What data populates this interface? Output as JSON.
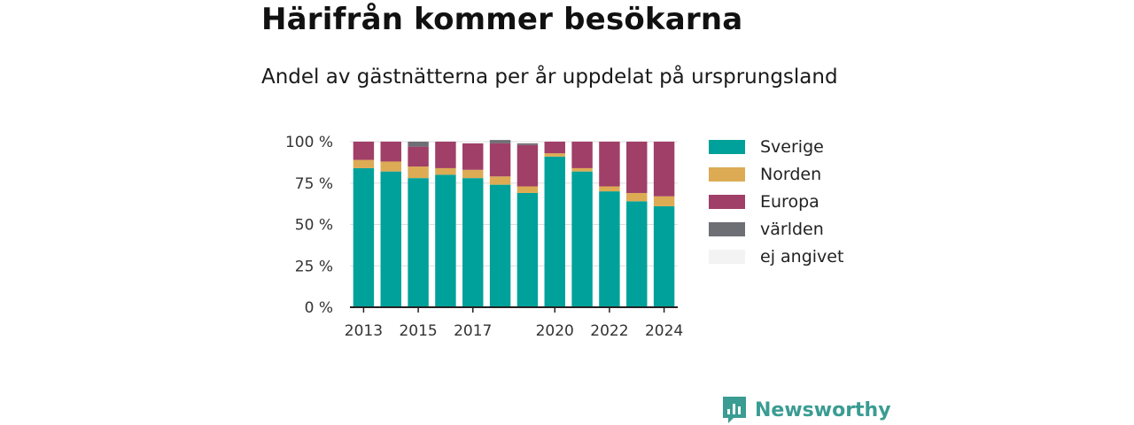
{
  "header": {
    "title": "Härifrån kommer besökarna",
    "subtitle": "Andel av gästnätterna per år uppdelat på ursprungsland"
  },
  "brand": {
    "name": "Newsworthy",
    "icon": "newsworthy-logo-icon",
    "color": "#3a9c92"
  },
  "chart_data": {
    "type": "bar",
    "stacked": true,
    "categories": [
      "2013",
      "2014",
      "2015",
      "2016",
      "2017",
      "2018",
      "2019",
      "2020",
      "2021",
      "2022",
      "2023",
      "2024"
    ],
    "x_tick_labels": [
      "2013",
      "2015",
      "2017",
      "2020",
      "2022",
      "2024"
    ],
    "y_tick_labels": [
      "0 %",
      "25 %",
      "50 %",
      "75 %",
      "100 %"
    ],
    "ylim": [
      0,
      100
    ],
    "yticks": [
      0,
      25,
      50,
      75,
      100
    ],
    "grid": true,
    "legend_position": "right",
    "series": [
      {
        "name": "Sverige",
        "color": "#00a19a",
        "values": [
          84,
          82,
          78,
          80,
          78,
          74,
          69,
          91,
          82,
          70,
          64,
          61
        ]
      },
      {
        "name": "Norden",
        "color": "#dcab54",
        "values": [
          5,
          6,
          7,
          4,
          5,
          5,
          4,
          2,
          2,
          3,
          5,
          6
        ]
      },
      {
        "name": "Europa",
        "color": "#a03f68",
        "values": [
          11,
          12,
          12,
          16,
          16,
          20,
          25,
          7,
          16,
          27,
          31,
          33
        ]
      },
      {
        "name": "världen",
        "color": "#6e6e75",
        "values": [
          0,
          0,
          3,
          0,
          0,
          2,
          1,
          0,
          0,
          0,
          0,
          0
        ]
      },
      {
        "name": "ej angivet",
        "color": "#f3f3f3",
        "values": [
          0,
          0,
          0,
          0,
          1,
          0,
          1,
          0,
          0,
          0,
          0,
          0
        ]
      }
    ]
  }
}
